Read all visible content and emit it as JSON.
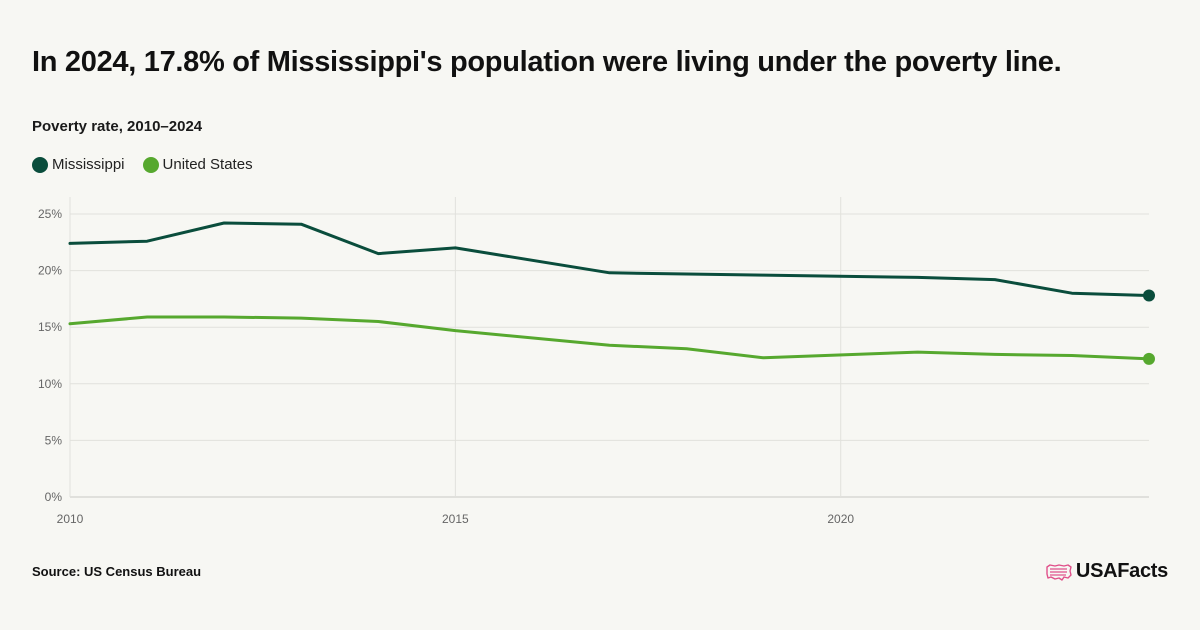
{
  "title": "In 2024, 17.8% of Mississippi's population were living under the poverty line.",
  "subtitle": "Poverty rate, 2010–2024",
  "source": "Source: US Census Bureau",
  "brand": {
    "name": "USAFacts",
    "logo_icon": "us-map-flag-icon",
    "logo_color": "#e0508a"
  },
  "chart_data": {
    "type": "line",
    "x": [
      2010,
      2011,
      2012,
      2013,
      2014,
      2015,
      2016,
      2017,
      2018,
      2019,
      2020,
      2021,
      2022,
      2023,
      2024
    ],
    "series": [
      {
        "name": "Mississippi",
        "color": "#0a4d3c",
        "values": [
          22.4,
          22.6,
          24.2,
          24.1,
          21.5,
          22.0,
          null,
          19.8,
          19.7,
          19.6,
          null,
          19.4,
          19.2,
          18.0,
          17.8
        ]
      },
      {
        "name": "United States",
        "color": "#56a82e",
        "values": [
          15.3,
          15.9,
          15.9,
          15.8,
          15.5,
          14.7,
          null,
          13.4,
          13.1,
          12.3,
          null,
          12.8,
          12.6,
          12.5,
          12.2
        ]
      }
    ],
    "y_ticks": [
      "0%",
      "5%",
      "10%",
      "15%",
      "20%",
      "25%"
    ],
    "y_tick_values": [
      0,
      5,
      10,
      15,
      20,
      25
    ],
    "x_ticks": [
      "2010",
      "2015",
      "2020"
    ],
    "x_tick_values": [
      2010,
      2015,
      2020
    ],
    "ylim": [
      0,
      26.5
    ],
    "xlim": [
      2010,
      2024
    ],
    "grid": true,
    "legend_position": "top-left",
    "end_markers": true
  }
}
